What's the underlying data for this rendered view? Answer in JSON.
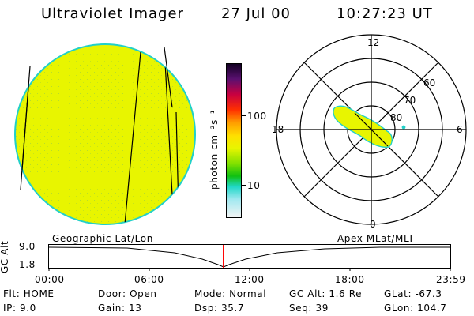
{
  "header": {
    "instrument": "Ultraviolet Imager",
    "date": "27 Jul 00",
    "time": "10:27:23 UT"
  },
  "colorbar": {
    "label": "photon cm⁻²s⁻¹",
    "ticks": [
      "100",
      "10"
    ]
  },
  "polar_plot": {
    "mlt_labels": {
      "top": "12",
      "right": "6",
      "bottom": "0",
      "left": "18"
    },
    "lat_labels": [
      "60",
      "70",
      "80"
    ]
  },
  "timeline": {
    "y_axis_label": "GC Alt",
    "y_ticks": [
      "9.0",
      "1.8"
    ],
    "left_title": "Geographic Lat/Lon",
    "right_title": "Apex MLat/MLT",
    "x_ticks": [
      "00:00",
      "06:00",
      "12:00",
      "18:00",
      "23:59"
    ],
    "current_time_fraction": 0.4343
  },
  "status": {
    "flt": "Flt: HOME",
    "ip": "IP:  9.0",
    "door": "Door: Open",
    "gain": "Gain: 13",
    "mode": "Mode: Normal",
    "dsp": "Dsp:   35.7",
    "gc_alt": "GC Alt: 1.6 Re",
    "seq": "Seq: 39",
    "glat": "GLat: -67.3",
    "glon": "GLon: 104.7"
  },
  "colors": {
    "disk_fill": "#e8f500",
    "disk_edge": "#22d0c8",
    "current_time_marker": "#ff0000"
  }
}
